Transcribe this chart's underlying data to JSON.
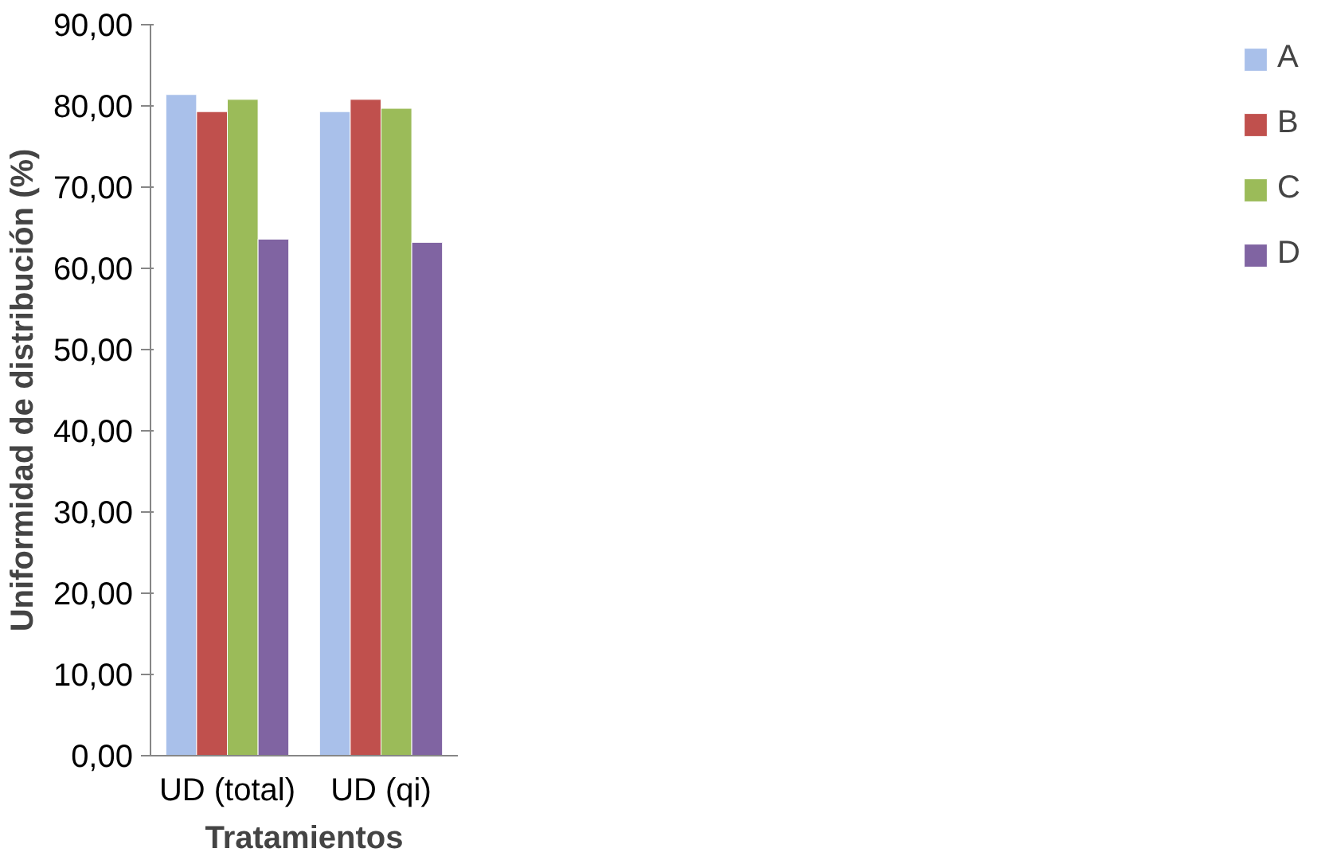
{
  "chart_data": {
    "type": "bar",
    "xlabel": "Tratamientos",
    "ylabel": "Uniformidad de distribución (%)",
    "categories": [
      "UD (total)",
      "UD (qi)"
    ],
    "series": [
      {
        "name": "A",
        "color": "#a9c0ea",
        "values": [
          81.4,
          79.3
        ]
      },
      {
        "name": "B",
        "color": "#c0504d",
        "values": [
          79.3,
          80.8
        ]
      },
      {
        "name": "C",
        "color": "#9bbb59",
        "values": [
          80.8,
          79.7
        ]
      },
      {
        "name": "D",
        "color": "#8064a2",
        "values": [
          63.6,
          63.2
        ]
      }
    ],
    "ylim": [
      0,
      90
    ],
    "yticks": [
      {
        "value": 0,
        "label": "0,00"
      },
      {
        "value": 10,
        "label": "10,00"
      },
      {
        "value": 20,
        "label": "20,00"
      },
      {
        "value": 30,
        "label": "30,00"
      },
      {
        "value": 40,
        "label": "40,00"
      },
      {
        "value": 50,
        "label": "50,00"
      },
      {
        "value": 60,
        "label": "60,00"
      },
      {
        "value": 70,
        "label": "70,00"
      },
      {
        "value": 80,
        "label": "80,00"
      },
      {
        "value": 90,
        "label": "90,00"
      }
    ],
    "grid": false,
    "legend": "right"
  }
}
